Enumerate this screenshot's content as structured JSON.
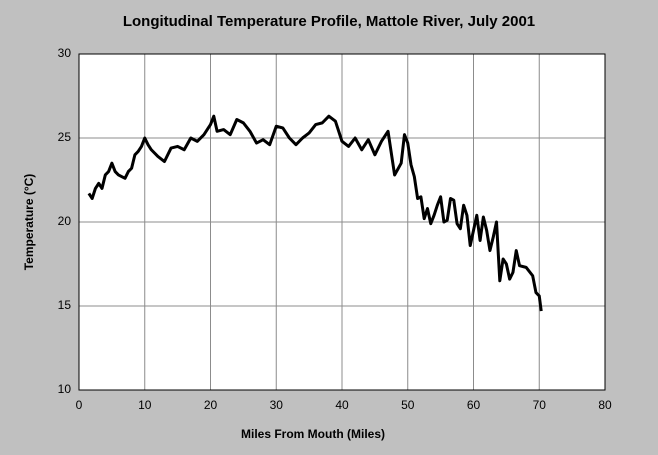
{
  "chart_data": {
    "type": "line",
    "title": "Longitudinal Temperature Profile, Mattole River, July 2001",
    "xlabel": "Miles From Mouth (Miles)",
    "ylabel": "Temperature (°C)",
    "x": [
      1.5,
      2,
      2.5,
      3,
      3.5,
      4,
      4.5,
      5,
      5.5,
      6,
      7,
      7.5,
      8,
      8.5,
      9,
      9.5,
      10,
      10.5,
      11,
      12,
      13,
      14,
      15,
      16,
      17,
      18,
      19,
      20,
      20.5,
      21,
      22,
      23,
      24,
      25,
      26,
      27,
      28,
      29,
      30,
      31,
      32,
      33,
      34,
      35,
      36,
      37,
      38,
      39,
      40,
      41,
      42,
      43,
      44,
      45,
      46,
      47,
      48,
      49,
      49.5,
      50,
      50.5,
      51,
      51.5,
      52,
      52.5,
      53,
      53.5,
      54,
      54.5,
      55,
      55.5,
      56,
      56.5,
      57,
      57.5,
      58,
      58.5,
      59,
      59.5,
      60,
      60.5,
      61,
      61.5,
      62,
      62.5,
      63,
      63.5,
      64,
      64.5,
      65,
      65.5,
      66,
      66.5,
      67,
      68,
      69,
      69.5,
      70,
      70.3
    ],
    "series": [
      {
        "name": "Temperature",
        "color": "#000000",
        "values": [
          21.7,
          21.4,
          22.0,
          22.3,
          22.0,
          22.8,
          23.0,
          23.5,
          23.0,
          22.8,
          22.6,
          23.0,
          23.2,
          24.0,
          24.2,
          24.5,
          25.0,
          24.6,
          24.3,
          23.9,
          23.6,
          24.4,
          24.5,
          24.3,
          25.0,
          24.8,
          25.2,
          25.8,
          26.3,
          25.4,
          25.5,
          25.2,
          26.1,
          25.9,
          25.4,
          24.7,
          24.9,
          24.6,
          25.7,
          25.6,
          25.0,
          24.6,
          25.0,
          25.3,
          25.8,
          25.9,
          26.3,
          26.0,
          24.8,
          24.5,
          25.0,
          24.3,
          24.9,
          24.0,
          24.8,
          25.4,
          22.8,
          23.5,
          25.2,
          24.7,
          23.4,
          22.7,
          21.4,
          21.5,
          20.2,
          20.8,
          19.9,
          20.4,
          21.0,
          21.5,
          20.0,
          20.1,
          21.4,
          21.3,
          19.9,
          19.6,
          21.0,
          20.4,
          18.6,
          19.5,
          20.4,
          18.9,
          20.3,
          19.5,
          18.3,
          19.1,
          20.0,
          16.5,
          17.8,
          17.5,
          16.6,
          17.0,
          18.3,
          17.4,
          17.3,
          16.8,
          15.8,
          15.6,
          14.7
        ]
      }
    ],
    "xlim": [
      0,
      80
    ],
    "xticks": [
      0,
      10,
      20,
      30,
      40,
      50,
      60,
      70,
      80
    ],
    "ylim": [
      10,
      30
    ],
    "yticks": [
      10,
      15,
      20,
      25,
      30
    ],
    "grid": true
  }
}
